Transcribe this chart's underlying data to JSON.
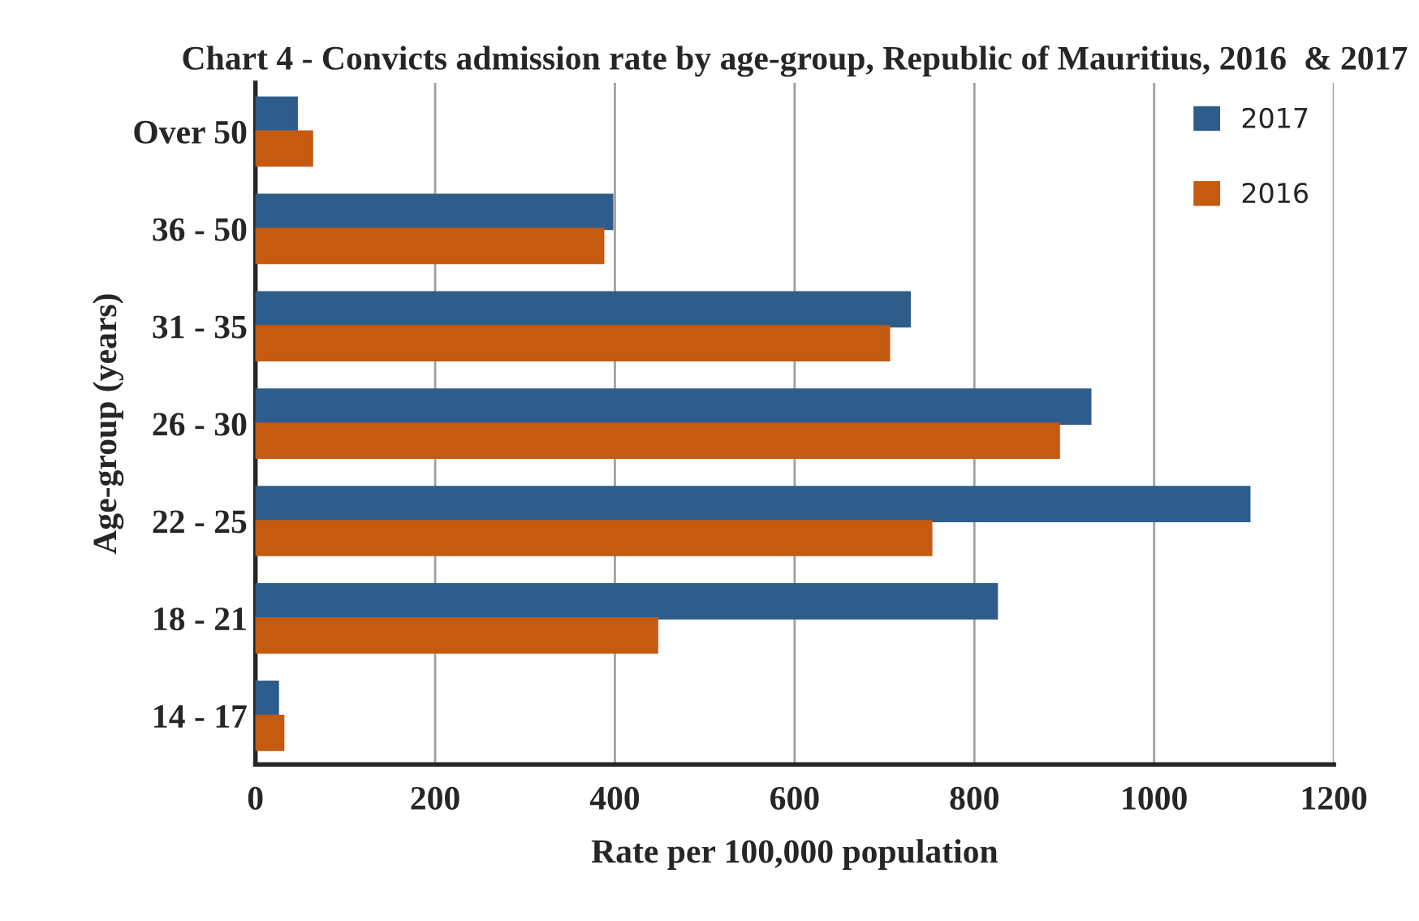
{
  "chart_data": {
    "type": "bar",
    "orientation": "horizontal",
    "title": "Chart 4 - Convicts admission rate by age-group, Republic of Mauritius, 2016  & 2017",
    "xlabel": "Rate per 100,000 population",
    "ylabel": "Age-group (years)",
    "categories": [
      "Over 50",
      "36 - 50",
      "31 - 35",
      "26 - 30",
      "22 - 25",
      "18 - 21",
      "14 - 17"
    ],
    "series": [
      {
        "name": "2017",
        "color": "#2e5d8c",
        "values": [
          46,
          397,
          728,
          929,
          1106,
          825,
          25
        ]
      },
      {
        "name": "2016",
        "color": "#c55a11",
        "values": [
          63,
          387,
          705,
          894,
          752,
          447,
          31
        ]
      }
    ],
    "xlim": [
      0,
      1200
    ],
    "xticks": [
      0,
      200,
      400,
      600,
      800,
      1000,
      1200
    ],
    "grid": "x",
    "legend": "top right"
  }
}
